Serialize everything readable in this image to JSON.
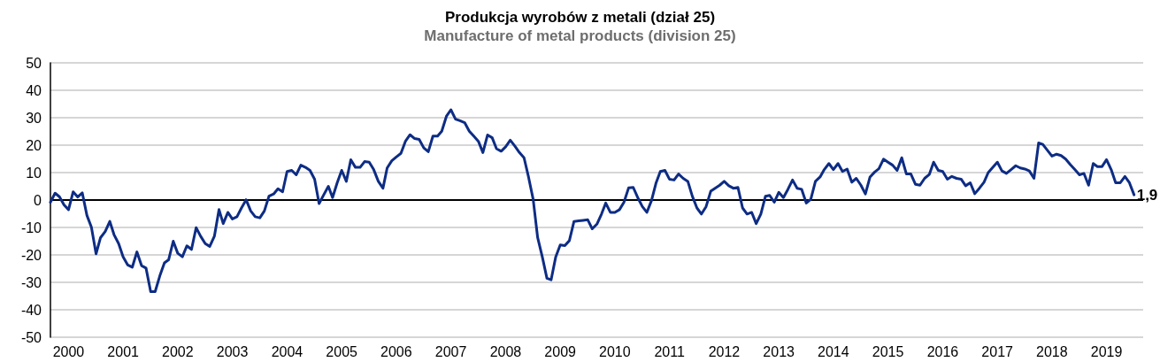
{
  "chart_data": {
    "type": "line",
    "title": "Produkcja wyrobów z metali (dział 25)",
    "subtitle": "Manufacture of metal products (division 25)",
    "x": [
      "2000-01",
      "2000-02",
      "2000-03",
      "2000-04",
      "2000-05",
      "2000-06",
      "2000-07",
      "2000-08",
      "2000-09",
      "2000-10",
      "2000-11",
      "2000-12",
      "2001-01",
      "2001-02",
      "2001-03",
      "2001-04",
      "2001-05",
      "2001-06",
      "2001-07",
      "2001-08",
      "2001-09",
      "2001-10",
      "2001-11",
      "2001-12",
      "2002-01",
      "2002-02",
      "2002-03",
      "2002-04",
      "2002-05",
      "2002-06",
      "2002-07",
      "2002-08",
      "2002-09",
      "2002-10",
      "2002-11",
      "2002-12",
      "2003-01",
      "2003-02",
      "2003-03",
      "2003-04",
      "2003-05",
      "2003-06",
      "2003-07",
      "2003-08",
      "2003-09",
      "2003-10",
      "2003-11",
      "2003-12",
      "2004-01",
      "2004-02",
      "2004-03",
      "2004-04",
      "2004-05",
      "2004-06",
      "2004-07",
      "2004-08",
      "2004-09",
      "2004-10",
      "2004-11",
      "2004-12",
      "2005-01",
      "2005-02",
      "2005-03",
      "2005-04",
      "2005-05",
      "2005-06",
      "2005-07",
      "2005-08",
      "2005-09",
      "2005-10",
      "2005-11",
      "2005-12",
      "2006-01",
      "2006-02",
      "2006-03",
      "2006-04",
      "2006-05",
      "2006-06",
      "2006-07",
      "2006-08",
      "2006-09",
      "2006-10",
      "2006-11",
      "2006-12",
      "2007-01",
      "2007-02",
      "2007-03",
      "2007-04",
      "2007-05",
      "2007-06",
      "2007-07",
      "2007-08",
      "2007-09",
      "2007-10",
      "2007-11",
      "2007-12",
      "2008-01",
      "2008-02",
      "2008-03",
      "2008-04",
      "2008-05",
      "2008-06",
      "2008-07",
      "2008-08",
      "2008-09",
      "2008-10",
      "2008-11",
      "2008-12",
      "2009-01",
      "2009-02",
      "2009-03",
      "2009-04",
      "2009-05",
      "2009-06",
      "2009-07",
      "2009-08",
      "2009-09",
      "2009-10",
      "2009-11",
      "2009-12",
      "2010-01",
      "2010-02",
      "2010-03",
      "2010-04",
      "2010-05",
      "2010-06",
      "2010-07",
      "2010-08",
      "2010-09",
      "2010-10",
      "2010-11",
      "2010-12",
      "2011-01",
      "2011-02",
      "2011-03",
      "2011-04",
      "2011-05",
      "2011-06",
      "2011-07",
      "2011-08",
      "2011-09",
      "2011-10",
      "2011-11",
      "2011-12",
      "2012-01",
      "2012-02",
      "2012-03",
      "2012-04",
      "2012-05",
      "2012-06",
      "2012-07",
      "2012-08",
      "2012-09",
      "2012-10",
      "2012-11",
      "2012-12",
      "2013-01",
      "2013-02",
      "2013-03",
      "2013-04",
      "2013-05",
      "2013-06",
      "2013-07",
      "2013-08",
      "2013-09",
      "2013-10",
      "2013-11",
      "2013-12",
      "2014-01",
      "2014-02",
      "2014-03",
      "2014-04",
      "2014-05",
      "2014-06",
      "2014-07",
      "2014-08",
      "2014-09",
      "2014-10",
      "2014-11",
      "2014-12",
      "2015-01",
      "2015-02",
      "2015-03",
      "2015-04",
      "2015-05",
      "2015-06",
      "2015-07",
      "2015-08",
      "2015-09",
      "2015-10",
      "2015-11",
      "2015-12",
      "2016-01",
      "2016-02",
      "2016-03",
      "2016-04",
      "2016-05",
      "2016-06",
      "2016-07",
      "2016-08",
      "2016-09",
      "2016-10",
      "2016-11",
      "2016-12",
      "2017-01",
      "2017-02",
      "2017-03",
      "2017-04",
      "2017-05",
      "2017-06",
      "2017-07",
      "2017-08",
      "2017-09",
      "2017-10",
      "2017-11",
      "2017-12",
      "2018-01",
      "2018-02",
      "2018-03",
      "2018-04",
      "2018-05",
      "2018-06",
      "2018-07",
      "2018-08",
      "2018-09",
      "2018-10",
      "2018-11",
      "2018-12",
      "2019-01",
      "2019-02",
      "2019-03",
      "2019-04",
      "2019-05",
      "2019-06",
      "2019-07",
      "2019-08",
      "2019-09",
      "2019-10",
      "2019-11"
    ],
    "values": [
      -0.8,
      2.5,
      1.2,
      -1.8,
      -3.5,
      3.0,
      1.1,
      2.6,
      -5.6,
      -9.9,
      -19.6,
      -13.7,
      -11.5,
      -7.8,
      -12.6,
      -15.9,
      -20.7,
      -23.7,
      -24.5,
      -18.9,
      -23.9,
      -24.8,
      -33.4,
      -33.4,
      -27.7,
      -22.9,
      -21.8,
      -15.0,
      -19.4,
      -20.7,
      -16.7,
      -18.0,
      -10.1,
      -13.2,
      -15.9,
      -16.9,
      -13.2,
      -3.5,
      -8.6,
      -4.5,
      -6.9,
      -6.1,
      -2.9,
      0.1,
      -4.0,
      -6.1,
      -6.5,
      -4.0,
      1.4,
      2.2,
      4.1,
      3.0,
      10.4,
      10.8,
      9.2,
      12.7,
      11.9,
      10.8,
      7.6,
      -1.3,
      1.9,
      5.0,
      0.9,
      6.3,
      10.8,
      6.8,
      14.7,
      11.9,
      11.9,
      14.0,
      13.8,
      11.1,
      6.8,
      4.3,
      11.7,
      14.3,
      15.7,
      17.0,
      21.4,
      23.8,
      22.4,
      22.1,
      19.0,
      17.6,
      23.3,
      23.3,
      25.1,
      30.5,
      32.9,
      29.5,
      28.9,
      28.2,
      25.1,
      23.3,
      21.4,
      17.3,
      23.7,
      22.7,
      18.7,
      17.8,
      19.4,
      21.8,
      19.7,
      17.3,
      15.4,
      8.4,
      0.3,
      -13.7,
      -20.7,
      -28.5,
      -29.1,
      -20.7,
      -16.4,
      -16.6,
      -14.8,
      -7.8,
      -7.6,
      -7.4,
      -7.2,
      -10.5,
      -8.8,
      -5.1,
      -1.1,
      -4.5,
      -4.5,
      -3.5,
      -0.8,
      4.4,
      4.6,
      0.9,
      -2.4,
      -4.5,
      -0.2,
      6.3,
      10.4,
      10.8,
      7.6,
      7.3,
      9.5,
      7.9,
      6.8,
      1.4,
      -2.9,
      -5.1,
      -2.4,
      3.2,
      4.3,
      5.4,
      6.8,
      5.2,
      4.3,
      4.6,
      -2.9,
      -5.1,
      -4.5,
      -8.6,
      -5.1,
      1.4,
      1.7,
      -0.8,
      2.8,
      0.9,
      3.9,
      7.3,
      4.3,
      3.9,
      -1.1,
      0.3,
      6.8,
      8.4,
      11.1,
      13.3,
      11.1,
      13.3,
      10.4,
      11.3,
      6.5,
      7.9,
      5.4,
      2.2,
      8.4,
      10.2,
      11.4,
      14.9,
      13.8,
      12.7,
      10.8,
      15.4,
      9.5,
      9.5,
      5.7,
      5.4,
      7.9,
      9.3,
      13.8,
      10.8,
      10.4,
      7.6,
      8.6,
      7.9,
      7.6,
      5.2,
      6.3,
      2.3,
      4.3,
      6.5,
      10.0,
      11.9,
      13.8,
      10.6,
      9.7,
      11.1,
      12.5,
      11.7,
      11.3,
      10.6,
      7.9,
      20.8,
      20.3,
      18.1,
      16.0,
      16.7,
      16.2,
      14.9,
      12.9,
      11.1,
      9.2,
      9.7,
      5.4,
      13.3,
      12.2,
      12.2,
      14.7,
      11.1,
      6.3,
      6.3,
      8.6,
      6.3,
      1.9
    ],
    "color": "#0d2c84",
    "marker": "none",
    "line_style": "solid",
    "xlim": [
      "2000-01",
      "2020-01"
    ],
    "xticks": [
      {
        "value": "2000-05",
        "label": "2000"
      },
      {
        "value": "2001-05",
        "label": "2001"
      },
      {
        "value": "2002-05",
        "label": "2002"
      },
      {
        "value": "2003-05",
        "label": "2003"
      },
      {
        "value": "2004-05",
        "label": "2004"
      },
      {
        "value": "2005-05",
        "label": "2005"
      },
      {
        "value": "2006-05",
        "label": "2006"
      },
      {
        "value": "2007-05",
        "label": "2007"
      },
      {
        "value": "2008-05",
        "label": "2008"
      },
      {
        "value": "2009-05",
        "label": "2009"
      },
      {
        "value": "2010-05",
        "label": "2010"
      },
      {
        "value": "2011-05",
        "label": "2011"
      },
      {
        "value": "2012-05",
        "label": "2012"
      },
      {
        "value": "2013-05",
        "label": "2013"
      },
      {
        "value": "2014-05",
        "label": "2014"
      },
      {
        "value": "2015-05",
        "label": "2015"
      },
      {
        "value": "2016-05",
        "label": "2016"
      },
      {
        "value": "2017-05",
        "label": "2017"
      },
      {
        "value": "2018-05",
        "label": "2018"
      },
      {
        "value": "2019-05",
        "label": "2019"
      }
    ],
    "ylim": [
      -50,
      50
    ],
    "yticks": [
      -50,
      -40,
      -30,
      -20,
      -10,
      0,
      10,
      20,
      30,
      40,
      50
    ],
    "grid": "y",
    "legend": false,
    "ref_lines": [
      {
        "axis": "y",
        "value": 0,
        "color": "#000000"
      }
    ],
    "annotations": [
      {
        "text": "1,9",
        "x": "2019-11",
        "y": 1.9
      }
    ]
  }
}
